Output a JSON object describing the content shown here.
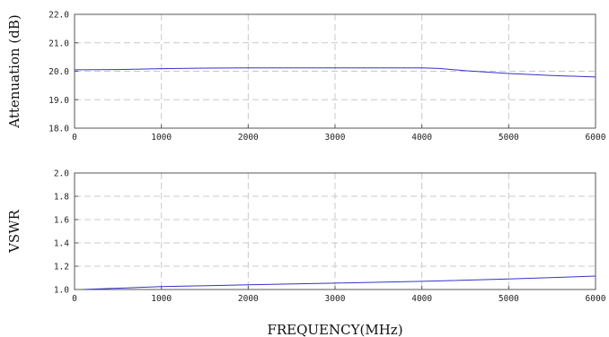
{
  "chart_data": [
    {
      "type": "line",
      "title": "",
      "xlabel": "",
      "ylabel": "Attenuation (dB)",
      "xlim": [
        0,
        6000
      ],
      "ylim": [
        18.0,
        22.0
      ],
      "x_ticks": [
        "0",
        "1000",
        "2000",
        "3000",
        "4000",
        "5000",
        "6000"
      ],
      "y_ticks": [
        "18.0",
        "19.0",
        "20.0",
        "21.0",
        "22.0"
      ],
      "grid": true,
      "series": [
        {
          "color": "#3333cc",
          "x": [
            0,
            500,
            1000,
            1500,
            2000,
            2500,
            3000,
            3500,
            4000,
            4200,
            4500,
            5000,
            5500,
            6000
          ],
          "y": [
            20.05,
            20.06,
            20.09,
            20.11,
            20.12,
            20.12,
            20.12,
            20.12,
            20.12,
            20.1,
            20.02,
            19.92,
            19.85,
            19.8
          ]
        }
      ]
    },
    {
      "type": "line",
      "title": "",
      "xlabel": "FREQUENCY(MHz)",
      "ylabel": "VSWR",
      "xlim": [
        0,
        6000
      ],
      "ylim": [
        1.0,
        2.0
      ],
      "x_ticks": [
        "0",
        "1000",
        "2000",
        "3000",
        "4000",
        "5000",
        "6000"
      ],
      "y_ticks": [
        "1.0",
        "1.2",
        "1.4",
        "1.6",
        "1.8",
        "2.0"
      ],
      "grid": true,
      "series": [
        {
          "color": "#3333cc",
          "x": [
            100,
            1000,
            2000,
            3000,
            4000,
            5000,
            6000
          ],
          "y": [
            1.0,
            1.025,
            1.04,
            1.055,
            1.07,
            1.09,
            1.115
          ]
        }
      ]
    }
  ]
}
